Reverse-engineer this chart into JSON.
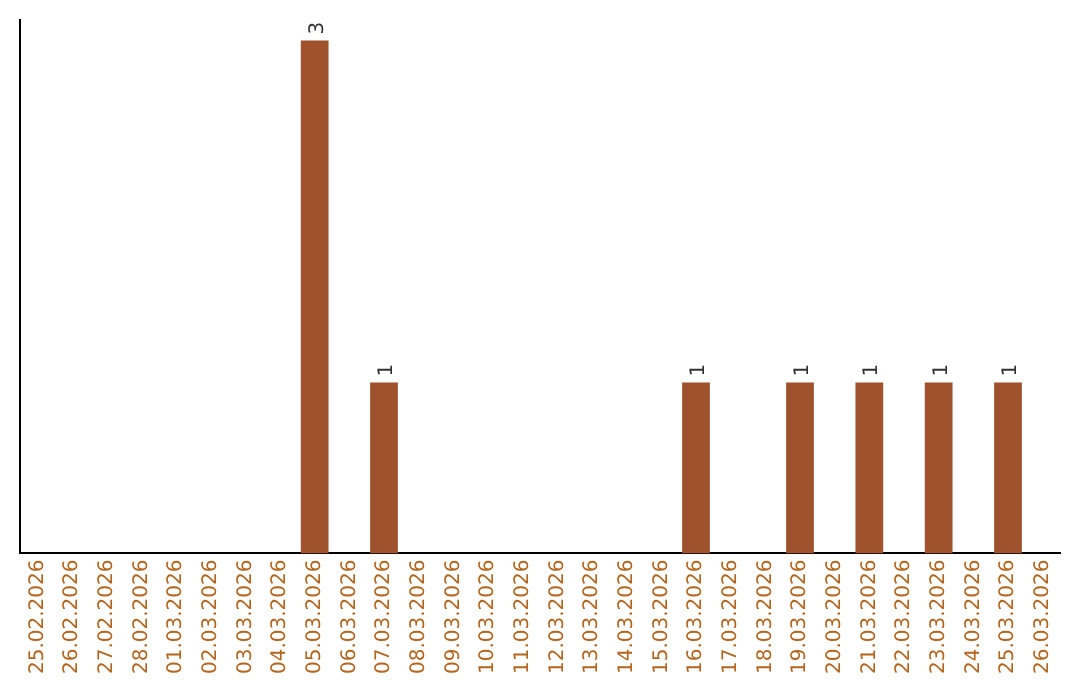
{
  "chart_data": {
    "type": "bar",
    "categories": [
      "25.02.2026",
      "26.02.2026",
      "27.02.2026",
      "28.02.2026",
      "01.03.2026",
      "02.03.2026",
      "03.03.2026",
      "04.03.2026",
      "05.03.2026",
      "06.03.2026",
      "07.03.2026",
      "08.03.2026",
      "09.03.2026",
      "10.03.2026",
      "11.03.2026",
      "12.03.2026",
      "13.03.2026",
      "14.03.2026",
      "15.03.2026",
      "16.03.2026",
      "17.03.2026",
      "18.03.2026",
      "19.03.2026",
      "20.03.2026",
      "21.03.2026",
      "22.03.2026",
      "23.03.2026",
      "24.03.2026",
      "25.03.2026",
      "26.03.2026"
    ],
    "values": [
      0,
      0,
      0,
      0,
      0,
      0,
      0,
      0,
      3,
      0,
      1,
      0,
      0,
      0,
      0,
      0,
      0,
      0,
      0,
      1,
      0,
      0,
      1,
      0,
      1,
      0,
      1,
      0,
      1,
      0
    ],
    "value_labels": [
      null,
      null,
      null,
      null,
      null,
      null,
      null,
      null,
      "3",
      null,
      "1",
      null,
      null,
      null,
      null,
      null,
      null,
      null,
      null,
      "1",
      null,
      null,
      "1",
      null,
      "1",
      null,
      "1",
      null,
      "1",
      null
    ],
    "color": "#a0522d",
    "ylim": [
      0,
      3.12
    ],
    "grid": false,
    "legend": false,
    "tick_labels": "x"
  }
}
